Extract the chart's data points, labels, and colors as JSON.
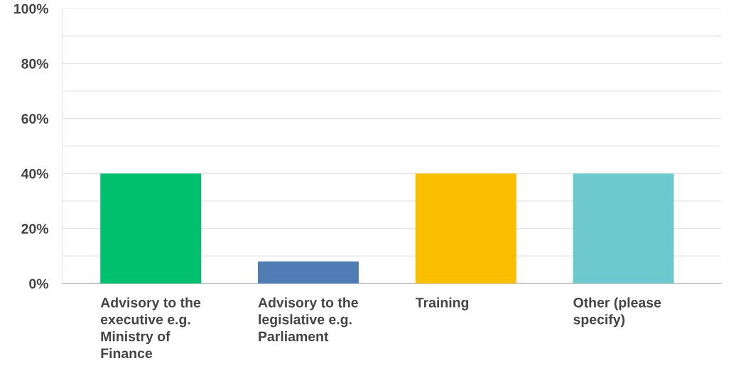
{
  "chart_data": {
    "type": "bar",
    "categories": [
      "Advisory to the\nexecutive e.g.\nMinistry of\nFinance",
      "Advisory to the\nlegislative e.g.\nParliament",
      "Training",
      "Other (please\nspecify)"
    ],
    "values": [
      40,
      8,
      40,
      40
    ],
    "colors": [
      "#00bf6f",
      "#507cb6",
      "#f9be00",
      "#6bc8cd"
    ],
    "ylim": [
      0,
      100
    ],
    "yticks": [
      {
        "value": 0,
        "label": "0%"
      },
      {
        "value": 10,
        "label": null
      },
      {
        "value": 20,
        "label": "20%"
      },
      {
        "value": 30,
        "label": null
      },
      {
        "value": 40,
        "label": "40%"
      },
      {
        "value": 50,
        "label": null
      },
      {
        "value": 60,
        "label": "60%"
      },
      {
        "value": 70,
        "label": null
      },
      {
        "value": 80,
        "label": "80%"
      },
      {
        "value": 90,
        "label": null
      },
      {
        "value": 100,
        "label": "100%"
      }
    ],
    "grid": "y"
  }
}
